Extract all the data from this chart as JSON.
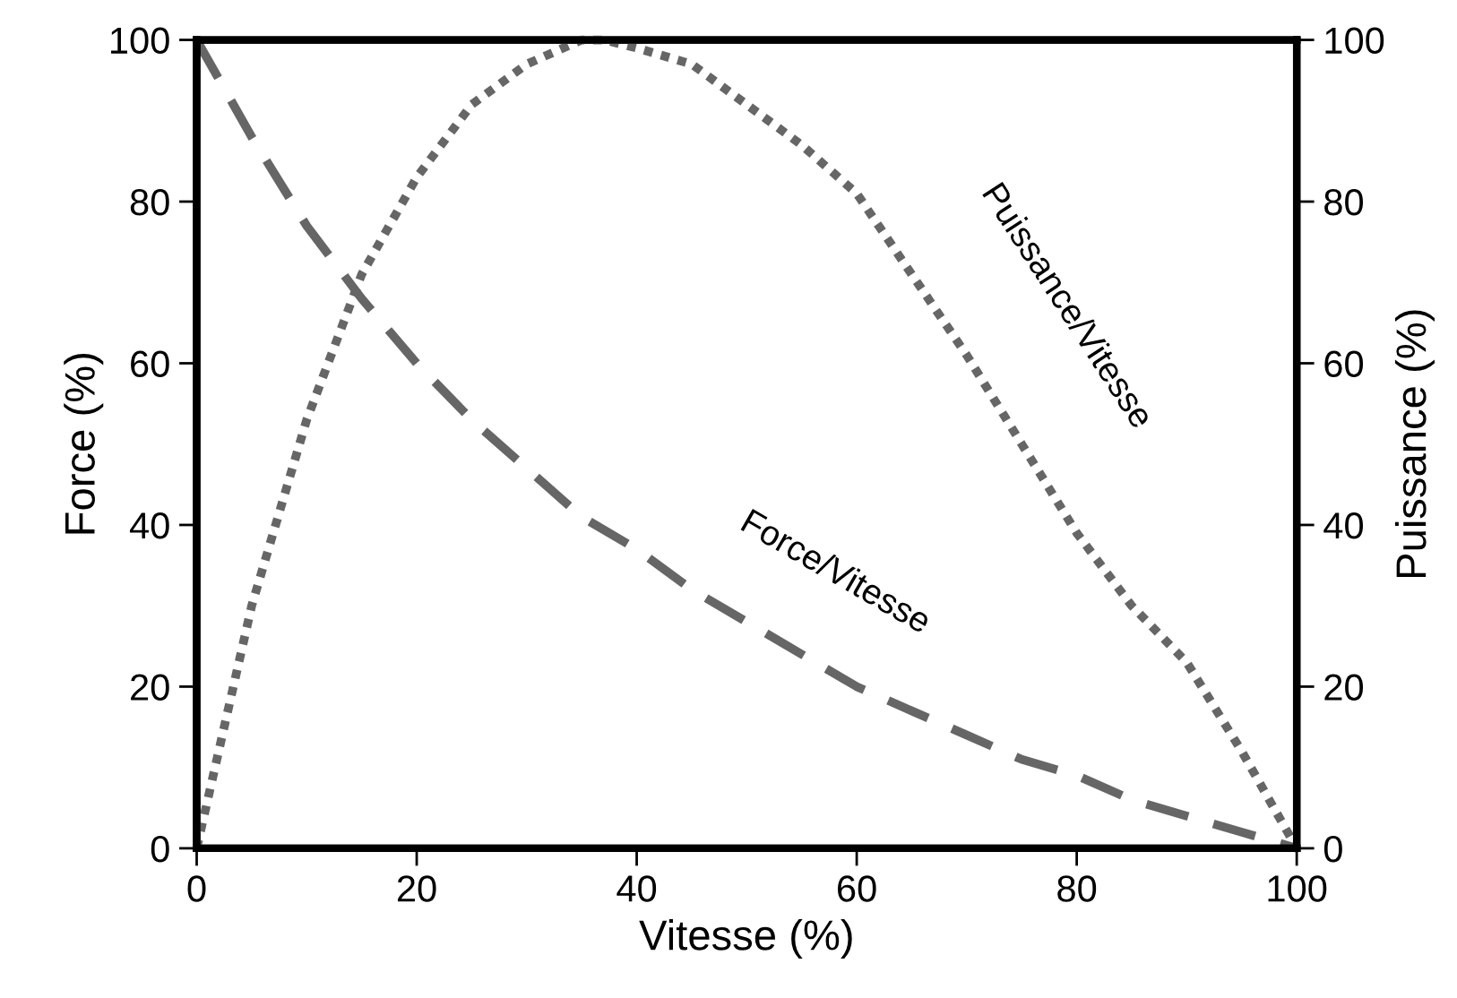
{
  "chart_data": {
    "type": "line",
    "xlabel": "Vitesse (%)",
    "ylabel": "Force (%)",
    "y2label": "Puissance (%)",
    "x": [
      0,
      5,
      10,
      15,
      20,
      25,
      30,
      35,
      40,
      45,
      50,
      55,
      60,
      65,
      70,
      75,
      80,
      85,
      90,
      95,
      100
    ],
    "series": [
      {
        "color": "#666666",
        "line_style": "dashed",
        "values": [
          100,
          88,
          77,
          68,
          60,
          53,
          47,
          41,
          37,
          32,
          28,
          24,
          20,
          17,
          14,
          11,
          9,
          6,
          4,
          2,
          0
        ]
      },
      {
        "color": "#666666",
        "line_style": "dotted",
        "axis": "y2",
        "x": [
          0,
          5,
          10,
          15,
          20,
          25,
          30,
          35,
          37,
          40,
          45,
          50,
          55,
          60,
          65,
          70,
          75,
          80,
          85,
          90,
          95,
          100
        ],
        "values": [
          0,
          30,
          53,
          71,
          83,
          92,
          97,
          100,
          100,
          99,
          97,
          92,
          87,
          81,
          71,
          61,
          50,
          39,
          30,
          23,
          12,
          0
        ]
      }
    ],
    "annotations": [
      "Force/Vitesse",
      "Puissance/Vitesse"
    ],
    "xlim": [
      0,
      100
    ],
    "xticks": [
      0,
      20,
      40,
      60,
      80,
      100
    ],
    "ylim": [
      0,
      100
    ],
    "yticks": [
      0,
      20,
      40,
      60,
      80,
      100
    ],
    "y2lim": [
      0,
      100
    ],
    "y2ticks": [
      0,
      20,
      40,
      60,
      80,
      100
    ],
    "grid": false,
    "legend": false
  }
}
